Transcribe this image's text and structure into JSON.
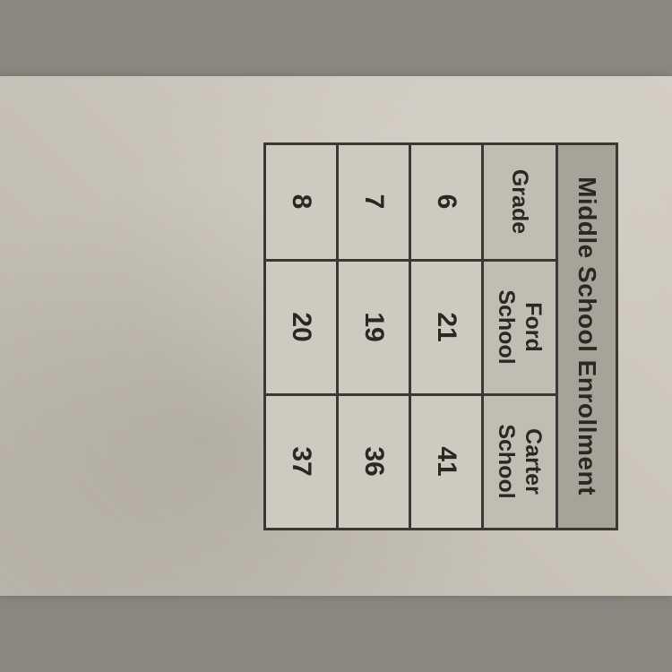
{
  "enrollment_table": {
    "type": "table",
    "title": "Middle School Enrollment",
    "columns": [
      {
        "label": "Grade"
      },
      {
        "label_line1": "Ford",
        "label_line2": "School"
      },
      {
        "label_line1": "Carter",
        "label_line2": "School"
      }
    ],
    "rows": [
      {
        "grade": "6",
        "ford": "21",
        "carter": "41"
      },
      {
        "grade": "7",
        "ford": "19",
        "carter": "36"
      },
      {
        "grade": "8",
        "ford": "20",
        "carter": "37"
      }
    ],
    "styling": {
      "title_bg": "#a8a398",
      "header_bg": "#c2bdb2",
      "cell_bg": "#cfcabf",
      "border_color": "#3a3834",
      "border_width": 3,
      "text_color": "#2a2825",
      "title_fontsize": 28,
      "header_fontsize": 25,
      "cell_fontsize": 30,
      "font_weight": "bold",
      "paper_bg": "#c8c3b8",
      "page_bg": "#8a8680",
      "rotation_deg": 90
    }
  }
}
